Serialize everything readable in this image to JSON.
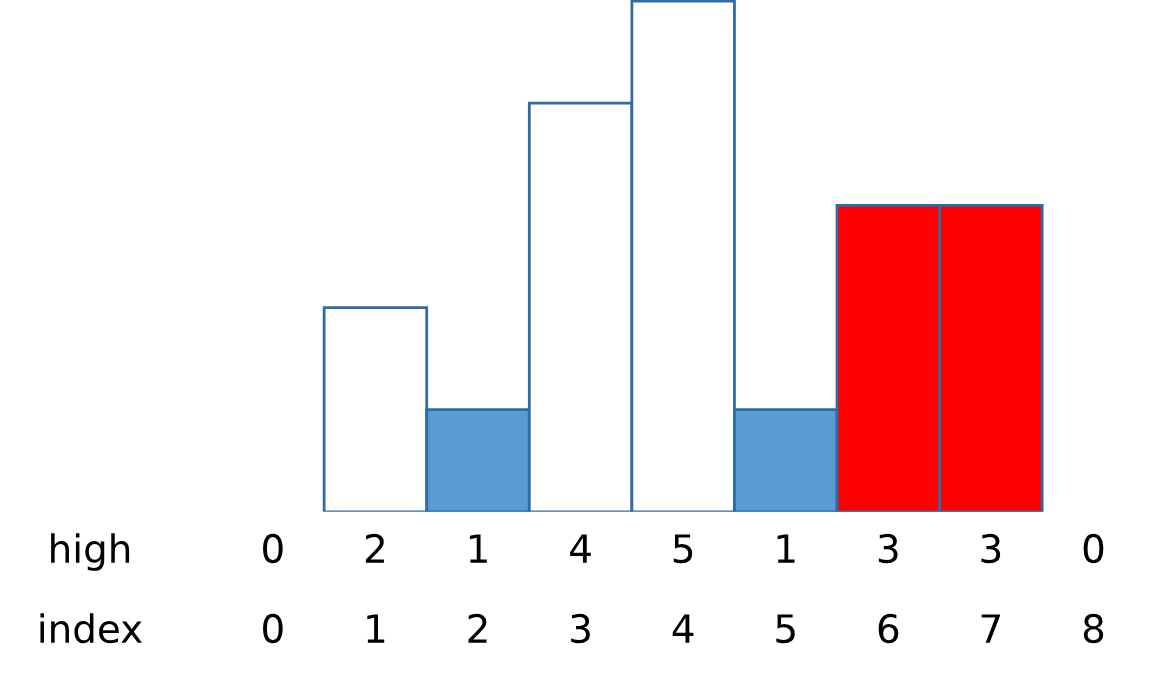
{
  "chart_data": {
    "type": "bar",
    "categories": [
      "0",
      "1",
      "2",
      "3",
      "4",
      "5",
      "6",
      "7",
      "8"
    ],
    "values": [
      0,
      2,
      1,
      4,
      5,
      1,
      3,
      3,
      0
    ],
    "colors": [
      "#ffffff",
      "#ffffff",
      "#5b9bd5",
      "#ffffff",
      "#ffffff",
      "#5b9bd5",
      "#ff0000",
      "#ff0000",
      "#ffffff"
    ],
    "xlabel": "index",
    "ylabel": "high",
    "data_labels": true
  }
}
